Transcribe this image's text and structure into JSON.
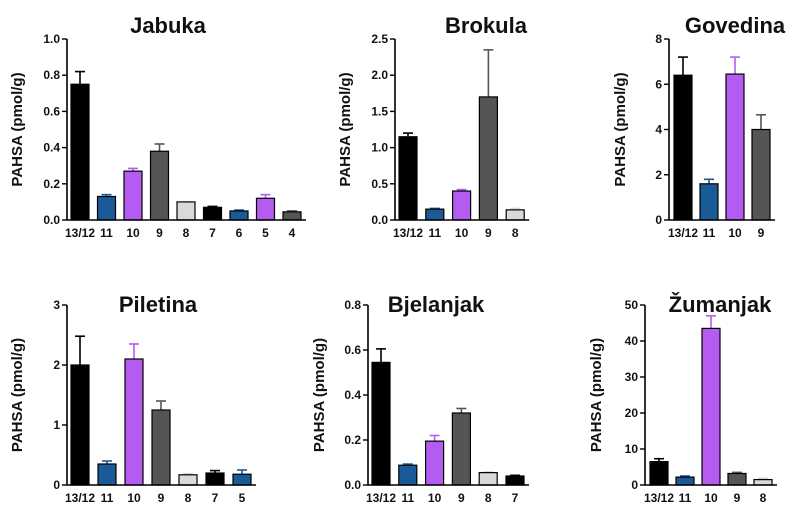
{
  "chart_data": [
    {
      "type": "bar",
      "title": "Jabuka",
      "ylabel": "PAHSA (pmol/g)",
      "xlabel": "",
      "ylim": [
        0,
        1.0
      ],
      "yticks": [
        "0.0",
        "0.2",
        "0.4",
        "0.6",
        "0.8",
        "1.0"
      ],
      "categories": [
        "13/12",
        "11",
        "10",
        "9",
        "8",
        "7",
        "6",
        "5",
        "4"
      ],
      "values": [
        0.75,
        0.13,
        0.27,
        0.38,
        0.1,
        0.07,
        0.05,
        0.12,
        0.045
      ],
      "errors": [
        0.07,
        0.01,
        0.015,
        0.04,
        0.0,
        0.005,
        0.005,
        0.02,
        0.005
      ],
      "colors": [
        "#000000",
        "#1a5a96",
        "#b45cf2",
        "#555555",
        "#d9d9d9",
        "#000000",
        "#1a5a96",
        "#b45cf2",
        "#555555"
      ]
    },
    {
      "type": "bar",
      "title": "Brokula",
      "ylabel": "PAHSA (pmol/g)",
      "xlabel": "",
      "ylim": [
        0,
        2.5
      ],
      "yticks": [
        "0.0",
        "0.5",
        "1.0",
        "1.5",
        "2.0",
        "2.5"
      ],
      "categories": [
        "13/12",
        "11",
        "10",
        "9",
        "8"
      ],
      "values": [
        1.15,
        0.15,
        0.4,
        1.7,
        0.14
      ],
      "errors": [
        0.05,
        0.01,
        0.02,
        0.65,
        0.02
      ],
      "colors": [
        "#000000",
        "#1a5a96",
        "#b45cf2",
        "#555555",
        "#d9d9d9"
      ]
    },
    {
      "type": "bar",
      "title": "Govedina",
      "ylabel": "PAHSA (pmol/g)",
      "xlabel": "",
      "ylim": [
        0,
        8
      ],
      "yticks": [
        "0",
        "2",
        "4",
        "6",
        "8"
      ],
      "categories": [
        "13/12",
        "11",
        "10",
        "9"
      ],
      "values": [
        6.4,
        1.6,
        6.45,
        4.0
      ],
      "errors": [
        0.8,
        0.2,
        0.75,
        0.65
      ],
      "colors": [
        "#000000",
        "#1a5a96",
        "#b45cf2",
        "#555555"
      ]
    },
    {
      "type": "bar",
      "title": "Piletina",
      "ylabel": "PAHSA (pmol/g)",
      "xlabel": "",
      "ylim": [
        0,
        3
      ],
      "yticks": [
        "0",
        "1",
        "2",
        "3"
      ],
      "categories": [
        "13/12",
        "11",
        "10",
        "9",
        "8",
        "7",
        "5"
      ],
      "values": [
        2.0,
        0.35,
        2.1,
        1.25,
        0.17,
        0.2,
        0.18
      ],
      "errors": [
        0.48,
        0.05,
        0.25,
        0.15,
        0.02,
        0.04,
        0.07
      ],
      "colors": [
        "#000000",
        "#1a5a96",
        "#b45cf2",
        "#555555",
        "#d9d9d9",
        "#000000",
        "#1a5a96"
      ]
    },
    {
      "type": "bar",
      "title": "Bjelanjak",
      "ylabel": "PAHSA (pmol/g)",
      "xlabel": "",
      "ylim": [
        0,
        0.8
      ],
      "yticks": [
        "0.0",
        "0.2",
        "0.4",
        "0.6",
        "0.8"
      ],
      "categories": [
        "13/12",
        "11",
        "10",
        "9",
        "8",
        "7"
      ],
      "values": [
        0.545,
        0.088,
        0.195,
        0.32,
        0.055,
        0.04
      ],
      "errors": [
        0.06,
        0.005,
        0.025,
        0.02,
        0.003,
        0.003
      ],
      "colors": [
        "#000000",
        "#1a5a96",
        "#b45cf2",
        "#555555",
        "#d9d9d9",
        "#000000"
      ]
    },
    {
      "type": "bar",
      "title": "Žumanjak",
      "ylabel": "PAHSA (pmol/g)",
      "xlabel": "",
      "ylim": [
        0,
        50
      ],
      "yticks": [
        "0",
        "10",
        "20",
        "30",
        "40",
        "50"
      ],
      "categories": [
        "13/12",
        "11",
        "10",
        "9",
        "8"
      ],
      "values": [
        6.5,
        2.2,
        43.5,
        3.2,
        1.5
      ],
      "errors": [
        0.8,
        0.3,
        3.5,
        0.3,
        0.4
      ],
      "colors": [
        "#000000",
        "#1a5a96",
        "#b45cf2",
        "#555555",
        "#d9d9d9"
      ]
    }
  ]
}
